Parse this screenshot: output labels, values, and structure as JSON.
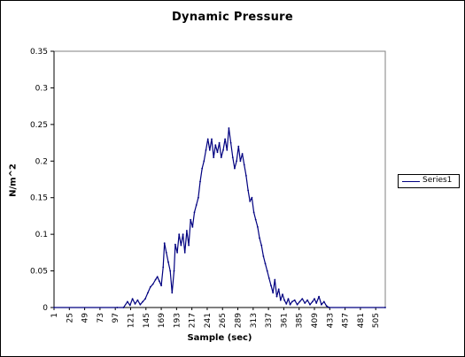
{
  "chart_data": {
    "type": "line",
    "title": "Dynamic Pressure",
    "xlabel": "Sample (sec)",
    "ylabel": "N/m^2",
    "ylim": [
      0,
      0.35
    ],
    "yticks": [
      0,
      0.05,
      0.1,
      0.15,
      0.2,
      0.25,
      0.3,
      0.35
    ],
    "ytick_labels": [
      "0",
      "0.05",
      "0.1",
      "0.15",
      "0.2",
      "0.25",
      "0.3",
      "0.35"
    ],
    "xlim": [
      1,
      520
    ],
    "xticks": [
      1,
      25,
      49,
      73,
      97,
      121,
      145,
      169,
      193,
      217,
      241,
      265,
      289,
      313,
      337,
      361,
      385,
      409,
      433,
      457,
      481,
      505
    ],
    "grid": false,
    "legend_position": "right",
    "colors": {
      "series": "#000080",
      "axis": "#000000"
    },
    "series": [
      {
        "name": "Series1",
        "points": [
          [
            1,
            0
          ],
          [
            100,
            0
          ],
          [
            110,
            0
          ],
          [
            116,
            0.008
          ],
          [
            120,
            0.003
          ],
          [
            124,
            0.012
          ],
          [
            128,
            0.005
          ],
          [
            132,
            0.01
          ],
          [
            136,
            0.004
          ],
          [
            140,
            0.008
          ],
          [
            144,
            0.012
          ],
          [
            148,
            0.02
          ],
          [
            152,
            0.028
          ],
          [
            156,
            0.032
          ],
          [
            160,
            0.038
          ],
          [
            163,
            0.042
          ],
          [
            166,
            0.036
          ],
          [
            169,
            0.03
          ],
          [
            172,
            0.055
          ],
          [
            174,
            0.088
          ],
          [
            177,
            0.075
          ],
          [
            180,
            0.062
          ],
          [
            183,
            0.05
          ],
          [
            186,
            0.02
          ],
          [
            189,
            0.05
          ],
          [
            191,
            0.086
          ],
          [
            194,
            0.075
          ],
          [
            197,
            0.1
          ],
          [
            200,
            0.085
          ],
          [
            203,
            0.1
          ],
          [
            206,
            0.075
          ],
          [
            209,
            0.105
          ],
          [
            212,
            0.085
          ],
          [
            215,
            0.12
          ],
          [
            218,
            0.11
          ],
          [
            221,
            0.13
          ],
          [
            224,
            0.14
          ],
          [
            227,
            0.15
          ],
          [
            230,
            0.172
          ],
          [
            233,
            0.19
          ],
          [
            236,
            0.2
          ],
          [
            239,
            0.215
          ],
          [
            242,
            0.23
          ],
          [
            245,
            0.215
          ],
          [
            248,
            0.23
          ],
          [
            251,
            0.205
          ],
          [
            254,
            0.222
          ],
          [
            257,
            0.212
          ],
          [
            260,
            0.225
          ],
          [
            263,
            0.205
          ],
          [
            266,
            0.215
          ],
          [
            269,
            0.23
          ],
          [
            272,
            0.215
          ],
          [
            275,
            0.245
          ],
          [
            278,
            0.225
          ],
          [
            281,
            0.205
          ],
          [
            284,
            0.19
          ],
          [
            287,
            0.2
          ],
          [
            290,
            0.22
          ],
          [
            293,
            0.2
          ],
          [
            296,
            0.21
          ],
          [
            299,
            0.195
          ],
          [
            302,
            0.18
          ],
          [
            305,
            0.16
          ],
          [
            308,
            0.145
          ],
          [
            311,
            0.15
          ],
          [
            314,
            0.13
          ],
          [
            317,
            0.12
          ],
          [
            320,
            0.11
          ],
          [
            323,
            0.095
          ],
          [
            326,
            0.085
          ],
          [
            329,
            0.07
          ],
          [
            332,
            0.06
          ],
          [
            335,
            0.05
          ],
          [
            338,
            0.04
          ],
          [
            341,
            0.03
          ],
          [
            344,
            0.02
          ],
          [
            347,
            0.038
          ],
          [
            350,
            0.015
          ],
          [
            353,
            0.025
          ],
          [
            356,
            0.01
          ],
          [
            359,
            0.018
          ],
          [
            362,
            0.01
          ],
          [
            365,
            0.005
          ],
          [
            368,
            0.012
          ],
          [
            371,
            0.004
          ],
          [
            374,
            0.008
          ],
          [
            378,
            0.01
          ],
          [
            382,
            0.004
          ],
          [
            386,
            0.008
          ],
          [
            390,
            0.012
          ],
          [
            394,
            0.006
          ],
          [
            398,
            0.01
          ],
          [
            402,
            0.004
          ],
          [
            406,
            0.008
          ],
          [
            409,
            0.012
          ],
          [
            412,
            0.006
          ],
          [
            416,
            0.015
          ],
          [
            420,
            0.004
          ],
          [
            424,
            0.008
          ],
          [
            428,
            0.002
          ],
          [
            432,
            0
          ],
          [
            520,
            0
          ]
        ]
      }
    ]
  }
}
